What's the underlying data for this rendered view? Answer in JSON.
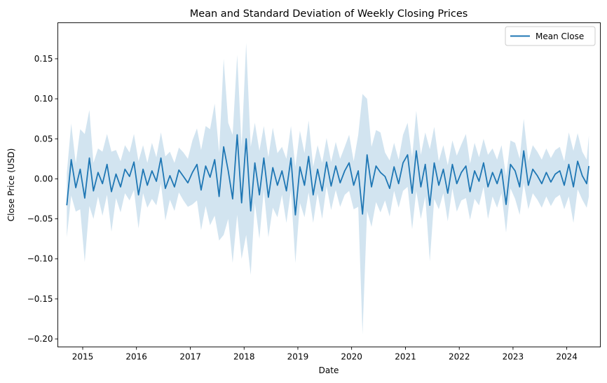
{
  "chart_data": {
    "type": "line",
    "title": "Mean and Standard Deviation of Weekly Closing Prices",
    "xlabel": "Date",
    "ylabel": "Close Price (USD)",
    "xlim": [
      "2014-07-16",
      "2024-08-16"
    ],
    "ylim": [
      -0.21,
      0.195
    ],
    "x_ticks": [
      {
        "label": "2015",
        "value": "2015-01-01"
      },
      {
        "label": "2016",
        "value": "2016-01-01"
      },
      {
        "label": "2017",
        "value": "2017-01-01"
      },
      {
        "label": "2018",
        "value": "2018-01-01"
      },
      {
        "label": "2019",
        "value": "2019-01-01"
      },
      {
        "label": "2020",
        "value": "2020-01-01"
      },
      {
        "label": "2021",
        "value": "2021-01-01"
      },
      {
        "label": "2022",
        "value": "2022-01-01"
      },
      {
        "label": "2023",
        "value": "2023-01-01"
      },
      {
        "label": "2024",
        "value": "2024-01-01"
      }
    ],
    "y_ticks": [
      {
        "label": "0.15",
        "value": 0.15
      },
      {
        "label": "0.10",
        "value": 0.1
      },
      {
        "label": "0.05",
        "value": 0.05
      },
      {
        "label": "0.00",
        "value": 0.0
      },
      {
        "label": "−0.05",
        "value": -0.05
      },
      {
        "label": "−0.10",
        "value": -0.1
      },
      {
        "label": "−0.15",
        "value": -0.15
      },
      {
        "label": "−0.20",
        "value": -0.2
      }
    ],
    "grid": false,
    "legend": {
      "position": "top-right",
      "entries": [
        "Mean Close"
      ]
    },
    "series": [
      {
        "name": "Mean Close",
        "color": "#1f77b4",
        "band_color": "#1f77b4",
        "band_opacity": 0.2,
        "x": [
          "2014-09-15",
          "2014-10-15",
          "2014-11-15",
          "2014-12-15",
          "2015-01-15",
          "2015-02-15",
          "2015-03-15",
          "2015-04-15",
          "2015-05-15",
          "2015-06-15",
          "2015-07-15",
          "2015-08-15",
          "2015-09-15",
          "2015-10-15",
          "2015-11-15",
          "2015-12-15",
          "2016-01-15",
          "2016-02-15",
          "2016-03-15",
          "2016-04-15",
          "2016-05-15",
          "2016-06-15",
          "2016-07-15",
          "2016-08-15",
          "2016-09-15",
          "2016-10-15",
          "2016-11-15",
          "2016-12-15",
          "2017-01-15",
          "2017-02-15",
          "2017-03-15",
          "2017-04-15",
          "2017-05-15",
          "2017-06-15",
          "2017-07-15",
          "2017-08-15",
          "2017-09-15",
          "2017-10-15",
          "2017-11-15",
          "2017-12-15",
          "2018-01-15",
          "2018-02-15",
          "2018-03-15",
          "2018-04-15",
          "2018-05-15",
          "2018-06-15",
          "2018-07-15",
          "2018-08-15",
          "2018-09-15",
          "2018-10-15",
          "2018-11-15",
          "2018-12-15",
          "2019-01-15",
          "2019-02-15",
          "2019-03-15",
          "2019-04-15",
          "2019-05-15",
          "2019-06-15",
          "2019-07-15",
          "2019-08-15",
          "2019-09-15",
          "2019-10-15",
          "2019-11-15",
          "2019-12-15",
          "2020-01-15",
          "2020-02-15",
          "2020-03-15",
          "2020-04-15",
          "2020-05-15",
          "2020-06-15",
          "2020-07-15",
          "2020-08-15",
          "2020-09-15",
          "2020-10-15",
          "2020-11-15",
          "2020-12-15",
          "2021-01-15",
          "2021-02-15",
          "2021-03-15",
          "2021-04-15",
          "2021-05-15",
          "2021-06-15",
          "2021-07-15",
          "2021-08-15",
          "2021-09-15",
          "2021-10-15",
          "2021-11-15",
          "2021-12-15",
          "2022-01-15",
          "2022-02-15",
          "2022-03-15",
          "2022-04-15",
          "2022-05-15",
          "2022-06-15",
          "2022-07-15",
          "2022-08-15",
          "2022-09-15",
          "2022-10-15",
          "2022-11-15",
          "2022-12-15",
          "2023-01-15",
          "2023-02-15",
          "2023-03-15",
          "2023-04-15",
          "2023-05-15",
          "2023-06-15",
          "2023-07-15",
          "2023-08-15",
          "2023-09-15",
          "2023-10-15",
          "2023-11-15",
          "2023-12-15",
          "2024-01-15",
          "2024-02-15",
          "2024-03-15",
          "2024-04-15",
          "2024-05-15",
          "2024-05-30"
        ],
        "mean": [
          -0.033,
          0.024,
          -0.011,
          0.012,
          -0.024,
          0.026,
          -0.015,
          0.008,
          -0.006,
          0.018,
          -0.016,
          0.006,
          -0.01,
          0.012,
          0.003,
          0.021,
          -0.02,
          0.012,
          -0.008,
          0.01,
          -0.003,
          0.026,
          -0.012,
          0.004,
          -0.01,
          0.011,
          0.003,
          -0.005,
          0.008,
          0.018,
          -0.014,
          0.016,
          0.002,
          0.024,
          -0.022,
          0.04,
          0.01,
          -0.025,
          0.055,
          -0.03,
          0.05,
          -0.04,
          0.02,
          -0.02,
          0.026,
          -0.023,
          0.014,
          -0.008,
          0.01,
          -0.015,
          0.026,
          -0.045,
          0.015,
          -0.008,
          0.028,
          -0.02,
          0.012,
          -0.015,
          0.021,
          -0.009,
          0.016,
          -0.005,
          0.01,
          0.02,
          -0.008,
          0.01,
          -0.044,
          0.03,
          -0.01,
          0.016,
          0.008,
          0.003,
          -0.012,
          0.015,
          -0.006,
          0.02,
          0.03,
          -0.018,
          0.035,
          -0.01,
          0.018,
          -0.033,
          0.02,
          -0.008,
          0.012,
          -0.018,
          0.018,
          -0.006,
          0.008,
          0.016,
          -0.016,
          0.01,
          -0.003,
          0.02,
          -0.01,
          0.008,
          -0.006,
          0.012,
          -0.032,
          0.018,
          0.01,
          -0.01,
          0.035,
          -0.008,
          0.012,
          0.004,
          -0.006,
          0.008,
          -0.004,
          0.006,
          0.01,
          -0.008,
          0.018,
          -0.01,
          0.022,
          0.004,
          -0.006,
          0.016
        ],
        "std": [
          0.04,
          0.045,
          0.03,
          0.05,
          0.08,
          0.06,
          0.035,
          0.03,
          0.04,
          0.038,
          0.05,
          0.03,
          0.032,
          0.03,
          0.03,
          0.035,
          0.042,
          0.03,
          0.028,
          0.035,
          0.03,
          0.032,
          0.04,
          0.03,
          0.03,
          0.028,
          0.03,
          0.03,
          0.04,
          0.045,
          0.05,
          0.05,
          0.06,
          0.07,
          0.055,
          0.11,
          0.06,
          0.08,
          0.1,
          0.07,
          0.12,
          0.08,
          0.05,
          0.055,
          0.04,
          0.05,
          0.05,
          0.04,
          0.03,
          0.04,
          0.04,
          0.06,
          0.045,
          0.04,
          0.045,
          0.035,
          0.03,
          0.035,
          0.03,
          0.03,
          0.03,
          0.03,
          0.03,
          0.035,
          0.03,
          0.045,
          0.15,
          0.07,
          0.05,
          0.045,
          0.05,
          0.03,
          0.035,
          0.03,
          0.03,
          0.035,
          0.04,
          0.045,
          0.05,
          0.04,
          0.04,
          0.07,
          0.045,
          0.03,
          0.03,
          0.035,
          0.03,
          0.035,
          0.035,
          0.04,
          0.035,
          0.035,
          0.03,
          0.03,
          0.04,
          0.03,
          0.03,
          0.03,
          0.035,
          0.03,
          0.035,
          0.035,
          0.04,
          0.03,
          0.03,
          0.03,
          0.03,
          0.03,
          0.03,
          0.03,
          0.03,
          0.03,
          0.04,
          0.045,
          0.035,
          0.03,
          0.03,
          0.038
        ]
      }
    ]
  }
}
